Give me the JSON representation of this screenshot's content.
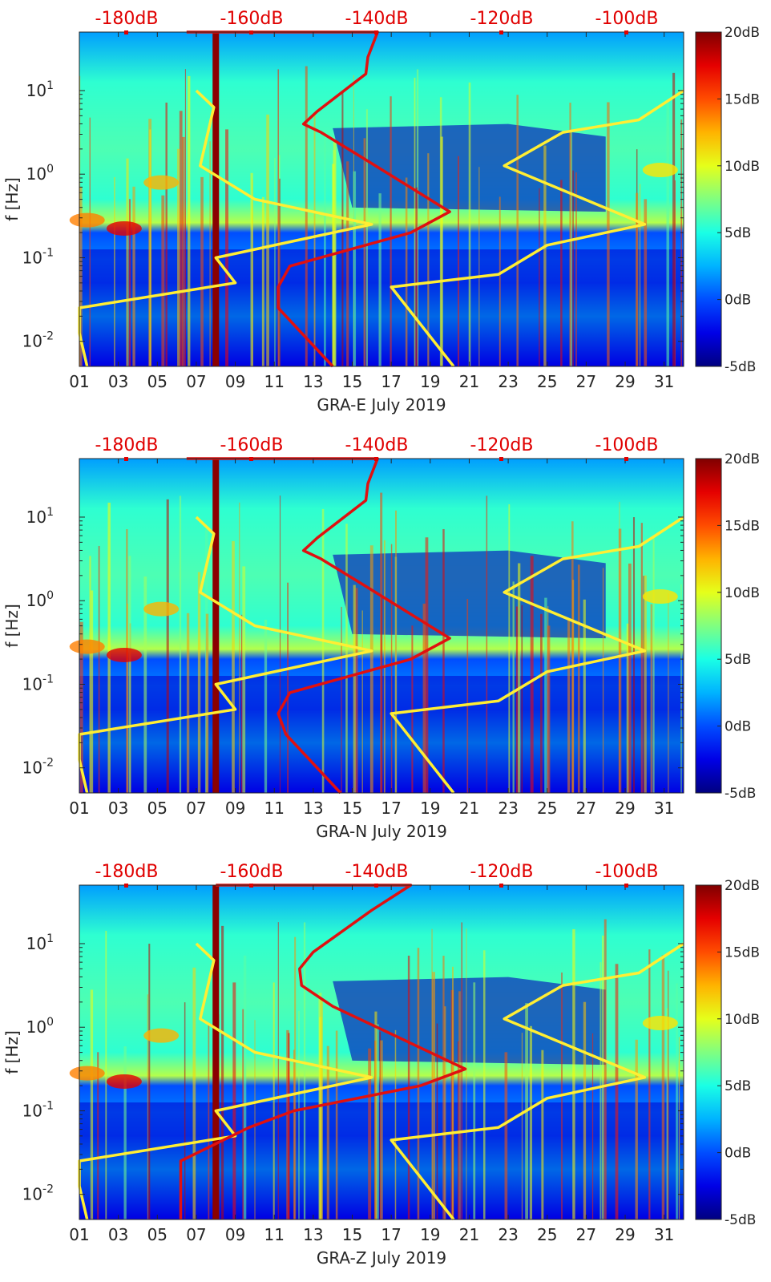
{
  "chart_data": [
    {
      "type": "heatmap",
      "title": "",
      "xlabel": "GRA-E July 2019",
      "ylabel": "f [Hz]",
      "x_ticks": [
        "01",
        "03",
        "05",
        "07",
        "09",
        "11",
        "13",
        "15",
        "17",
        "19",
        "21",
        "23",
        "25",
        "27",
        "29",
        "31"
      ],
      "y_ticks": [
        "10^{-2}",
        "10^{-1}",
        "10^{0}",
        "10^{1}"
      ],
      "y_tick_display": [
        {
          "base": "10",
          "exp": "-2"
        },
        {
          "base": "10",
          "exp": "-1"
        },
        {
          "base": "10",
          "exp": "0"
        },
        {
          "base": "10",
          "exp": "1"
        }
      ],
      "top_axis_labels": [
        "-180dB",
        "-160dB",
        "-140dB",
        "-120dB",
        "-100dB"
      ],
      "colorbar_labels": [
        "20dB",
        "15dB",
        "10dB",
        "5dB",
        "0dB",
        "-5dB"
      ],
      "colorbar_range": [
        -5,
        20
      ],
      "xlim": [
        1,
        32
      ],
      "ylim_log10": [
        -2.3,
        1.7
      ],
      "yellow_curves": [
        [
          [
            7,
            1.0
          ],
          [
            7.9,
            0.8
          ],
          [
            7.2,
            0.1
          ],
          [
            10,
            -0.3
          ],
          [
            16,
            -0.6
          ],
          [
            8,
            -1.0
          ],
          [
            9,
            -1.3
          ],
          [
            1,
            -1.6
          ],
          [
            1,
            -1.9
          ],
          [
            1.4,
            -2.3
          ]
        ],
        [
          [
            32,
            1.0
          ],
          [
            29.7,
            0.65
          ],
          [
            25.8,
            0.5
          ],
          [
            22.8,
            0.1
          ],
          [
            30,
            -0.6
          ],
          [
            25,
            -0.85
          ],
          [
            22.5,
            -1.2
          ],
          [
            17,
            -1.35
          ],
          [
            20.2,
            -2.3
          ]
        ]
      ],
      "red_curve": [
        [
          6.5,
          1.7
        ],
        [
          16.3,
          1.7
        ],
        [
          15.8,
          1.4
        ],
        [
          15.7,
          1.2
        ],
        [
          13.2,
          0.75
        ],
        [
          12.5,
          0.6
        ],
        [
          13.4,
          0.5
        ],
        [
          15.5,
          0.2
        ],
        [
          20,
          -0.45
        ],
        [
          18,
          -0.7
        ],
        [
          11.8,
          -1.1
        ],
        [
          11.2,
          -1.35
        ],
        [
          11.2,
          -1.6
        ],
        [
          14,
          -2.3
        ]
      ],
      "red_vertical_bar_x": 8.0
    },
    {
      "type": "heatmap",
      "title": "",
      "xlabel": "GRA-N July 2019",
      "ylabel": "f [Hz]",
      "x_ticks": [
        "01",
        "03",
        "05",
        "07",
        "09",
        "11",
        "13",
        "15",
        "17",
        "19",
        "21",
        "23",
        "25",
        "27",
        "29",
        "31"
      ],
      "y_ticks": [
        "10^{-2}",
        "10^{-1}",
        "10^{0}",
        "10^{1}"
      ],
      "y_tick_display": [
        {
          "base": "10",
          "exp": "-2"
        },
        {
          "base": "10",
          "exp": "-1"
        },
        {
          "base": "10",
          "exp": "0"
        },
        {
          "base": "10",
          "exp": "1"
        }
      ],
      "top_axis_labels": [
        "-180dB",
        "-160dB",
        "-140dB",
        "-120dB",
        "-100dB"
      ],
      "colorbar_labels": [
        "20dB",
        "15dB",
        "10dB",
        "5dB",
        "0dB",
        "-5dB"
      ],
      "colorbar_range": [
        -5,
        20
      ],
      "xlim": [
        1,
        32
      ],
      "ylim_log10": [
        -2.3,
        1.7
      ],
      "yellow_curves": [
        [
          [
            7,
            1.0
          ],
          [
            7.9,
            0.8
          ],
          [
            7.2,
            0.1
          ],
          [
            10,
            -0.3
          ],
          [
            16,
            -0.6
          ],
          [
            8,
            -1.0
          ],
          [
            9,
            -1.3
          ],
          [
            1,
            -1.6
          ],
          [
            1,
            -1.9
          ],
          [
            1.4,
            -2.3
          ]
        ],
        [
          [
            32,
            1.0
          ],
          [
            29.7,
            0.65
          ],
          [
            25.8,
            0.5
          ],
          [
            22.8,
            0.1
          ],
          [
            30,
            -0.6
          ],
          [
            25,
            -0.85
          ],
          [
            22.5,
            -1.2
          ],
          [
            17,
            -1.35
          ],
          [
            20.2,
            -2.3
          ]
        ]
      ],
      "red_curve": [
        [
          6.5,
          1.7
        ],
        [
          16.3,
          1.7
        ],
        [
          15.8,
          1.4
        ],
        [
          15.7,
          1.2
        ],
        [
          13.2,
          0.75
        ],
        [
          12.5,
          0.6
        ],
        [
          13.4,
          0.5
        ],
        [
          15.5,
          0.2
        ],
        [
          20,
          -0.45
        ],
        [
          18,
          -0.7
        ],
        [
          11.8,
          -1.1
        ],
        [
          11.2,
          -1.35
        ],
        [
          11.6,
          -1.6
        ],
        [
          14.4,
          -2.3
        ]
      ],
      "red_vertical_bar_x": 8.0
    },
    {
      "type": "heatmap",
      "title": "",
      "xlabel": "GRA-Z July 2019",
      "ylabel": "f [Hz]",
      "x_ticks": [
        "01",
        "03",
        "05",
        "07",
        "09",
        "11",
        "13",
        "15",
        "17",
        "19",
        "21",
        "23",
        "25",
        "27",
        "29",
        "31"
      ],
      "y_ticks": [
        "10^{-2}",
        "10^{-1}",
        "10^{0}",
        "10^{1}"
      ],
      "y_tick_display": [
        {
          "base": "10",
          "exp": "-2"
        },
        {
          "base": "10",
          "exp": "-1"
        },
        {
          "base": "10",
          "exp": "0"
        },
        {
          "base": "10",
          "exp": "1"
        }
      ],
      "top_axis_labels": [
        "-180dB",
        "-160dB",
        "-140dB",
        "-120dB",
        "-100dB"
      ],
      "colorbar_labels": [
        "20dB",
        "15dB",
        "10dB",
        "5dB",
        "0dB",
        "-5dB"
      ],
      "colorbar_range": [
        -5,
        20
      ],
      "xlim": [
        1,
        32
      ],
      "ylim_log10": [
        -2.3,
        1.7
      ],
      "yellow_curves": [
        [
          [
            7,
            1.0
          ],
          [
            7.9,
            0.8
          ],
          [
            7.2,
            0.1
          ],
          [
            10,
            -0.3
          ],
          [
            16,
            -0.6
          ],
          [
            8,
            -1.0
          ],
          [
            9,
            -1.3
          ],
          [
            1,
            -1.6
          ],
          [
            1,
            -1.9
          ],
          [
            1.4,
            -2.3
          ]
        ],
        [
          [
            32,
            1.0
          ],
          [
            29.7,
            0.65
          ],
          [
            25.8,
            0.5
          ],
          [
            22.8,
            0.1
          ],
          [
            30,
            -0.6
          ],
          [
            25,
            -0.85
          ],
          [
            22.5,
            -1.2
          ],
          [
            17,
            -1.35
          ],
          [
            20.2,
            -2.3
          ]
        ]
      ],
      "red_curve": [
        [
          8,
          1.7
        ],
        [
          18,
          1.7
        ],
        [
          16,
          1.4
        ],
        [
          13,
          0.9
        ],
        [
          12.3,
          0.7
        ],
        [
          12.4,
          0.5
        ],
        [
          14,
          0.25
        ],
        [
          20.8,
          -0.5
        ],
        [
          18.5,
          -0.7
        ],
        [
          12,
          -1.0
        ],
        [
          9.7,
          -1.2
        ],
        [
          6.2,
          -1.6
        ],
        [
          6.2,
          -2.3
        ]
      ],
      "red_vertical_bar_x": 8.0
    }
  ]
}
